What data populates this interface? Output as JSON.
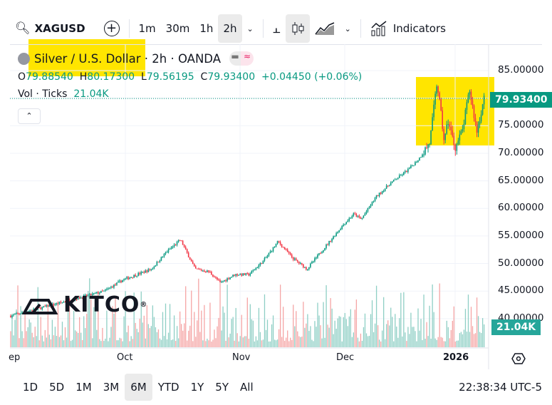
{
  "toolbar": {
    "symbol": "XAGUSD",
    "intervals": [
      "1m",
      "30m",
      "1h",
      "2h"
    ],
    "active_interval": "2h",
    "indicators_label": "Indicators"
  },
  "legend": {
    "title": "Silver / U.S. Dollar · 2h · OANDA",
    "open_label": "O",
    "open": "79.88540",
    "high_label": "H",
    "high": "80.17300",
    "low_label": "L",
    "low": "79.56195",
    "close_label": "C",
    "close": "79.93400",
    "change": "+0.04450 (+0.06%)",
    "volume_label": "Vol · Ticks",
    "volume": "21.04K"
  },
  "price_axis": {
    "labels": [
      "85.00000",
      "80.00000",
      "75.00000",
      "70.00000",
      "65.00000",
      "60.00000",
      "55.00000",
      "50.00000",
      "45.00000",
      "40.00000"
    ],
    "last_price": "79.93400",
    "last_volume": "21.04K"
  },
  "time_axis": {
    "labels": [
      "ep",
      "Oct",
      "Nov",
      "Dec",
      "2026"
    ]
  },
  "watermark": "KITCO",
  "bottom": {
    "ranges": [
      "1D",
      "5D",
      "1M",
      "3M",
      "6M",
      "YTD",
      "1Y",
      "5Y",
      "All"
    ],
    "active_range": "6M",
    "clock": "22:38:34 UTC-5"
  },
  "colors": {
    "up": "#089981",
    "down": "#f23645",
    "highlight": "#ffe500",
    "vol_up": "#8fcfc5",
    "vol_down": "#f5a5a5"
  },
  "chart_data": {
    "type": "candlestick",
    "ylim": [
      38,
      87
    ],
    "series": [
      [
        "2025-08-31",
        40.5
      ],
      [
        "2025-09-26",
        45
      ],
      [
        "2025-10-01",
        47
      ],
      [
        "2025-10-09",
        49
      ],
      [
        "2025-10-13",
        52
      ],
      [
        "2025-10-17",
        54.3
      ],
      [
        "2025-10-21",
        49
      ],
      [
        "2025-10-25",
        48.5
      ],
      [
        "2025-10-28",
        46.5
      ],
      [
        "2025-11-01",
        48
      ],
      [
        "2025-11-05",
        48
      ],
      [
        "2025-11-09",
        50.5
      ],
      [
        "2025-11-13",
        54
      ],
      [
        "2025-11-17",
        51
      ],
      [
        "2025-11-21",
        49
      ],
      [
        "2025-11-26",
        53
      ],
      [
        "2025-12-01",
        57
      ],
      [
        "2025-12-04",
        59
      ],
      [
        "2025-12-06",
        58
      ],
      [
        "2025-12-10",
        62
      ],
      [
        "2025-12-14",
        64.5
      ],
      [
        "2025-12-19",
        67
      ],
      [
        "2025-12-22",
        69
      ],
      [
        "2025-12-25",
        72
      ],
      [
        "2025-12-27",
        83
      ],
      [
        "2025-12-29",
        72
      ],
      [
        "2025-12-30",
        76
      ],
      [
        "2026-01-01",
        71
      ],
      [
        "2026-01-03",
        74
      ],
      [
        "2026-01-05",
        81.5
      ],
      [
        "2026-01-07",
        74
      ],
      [
        "2026-01-09",
        79.934
      ]
    ]
  }
}
